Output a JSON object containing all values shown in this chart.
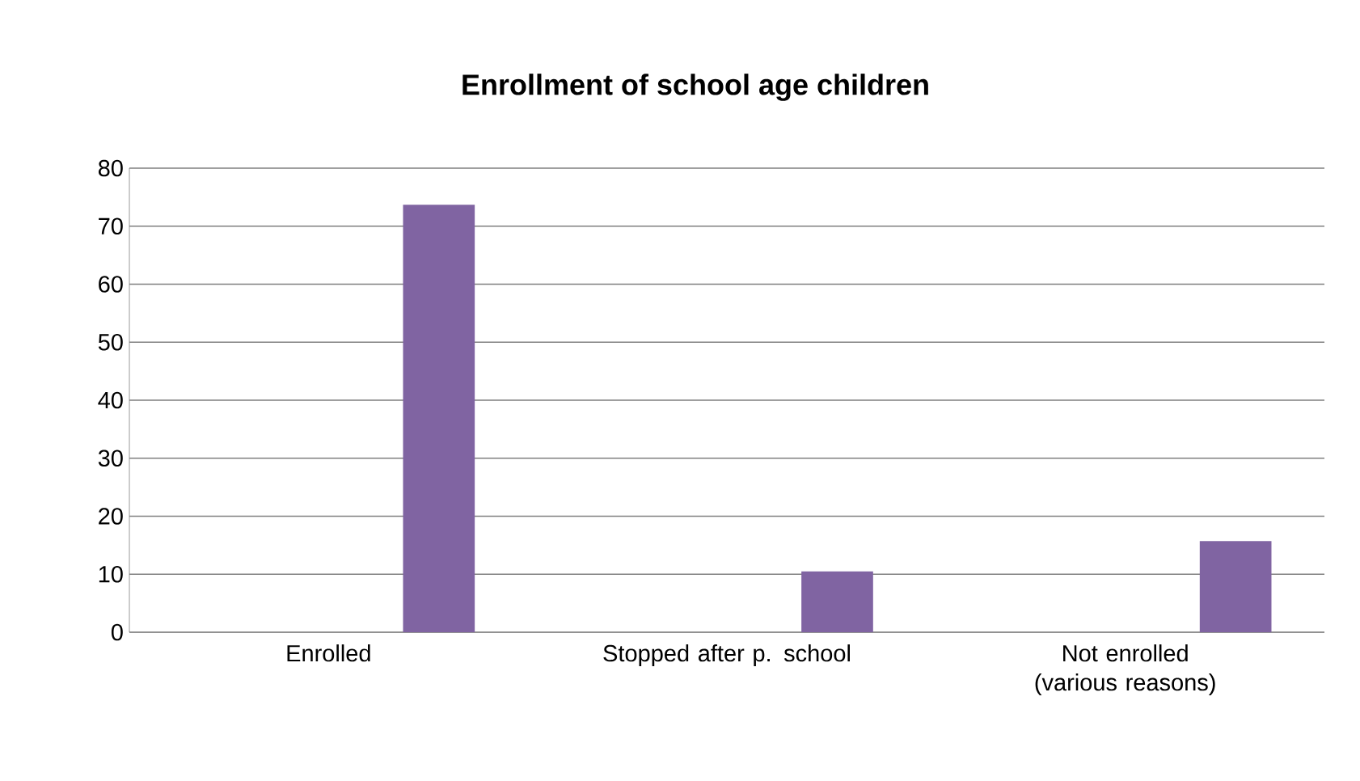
{
  "chart_data": {
    "type": "bar",
    "title": "Enrollment of school age children",
    "categories": [
      "Enrolled",
      "Stopped after p. school",
      "Not enrolled (various reasons)"
    ],
    "values": [
      73.7,
      10.5,
      15.7
    ],
    "color": "#8064a2",
    "ylim": [
      0,
      80
    ],
    "yticks": [
      0,
      10,
      20,
      30,
      40,
      50,
      60,
      70,
      80
    ],
    "grid": "y"
  }
}
